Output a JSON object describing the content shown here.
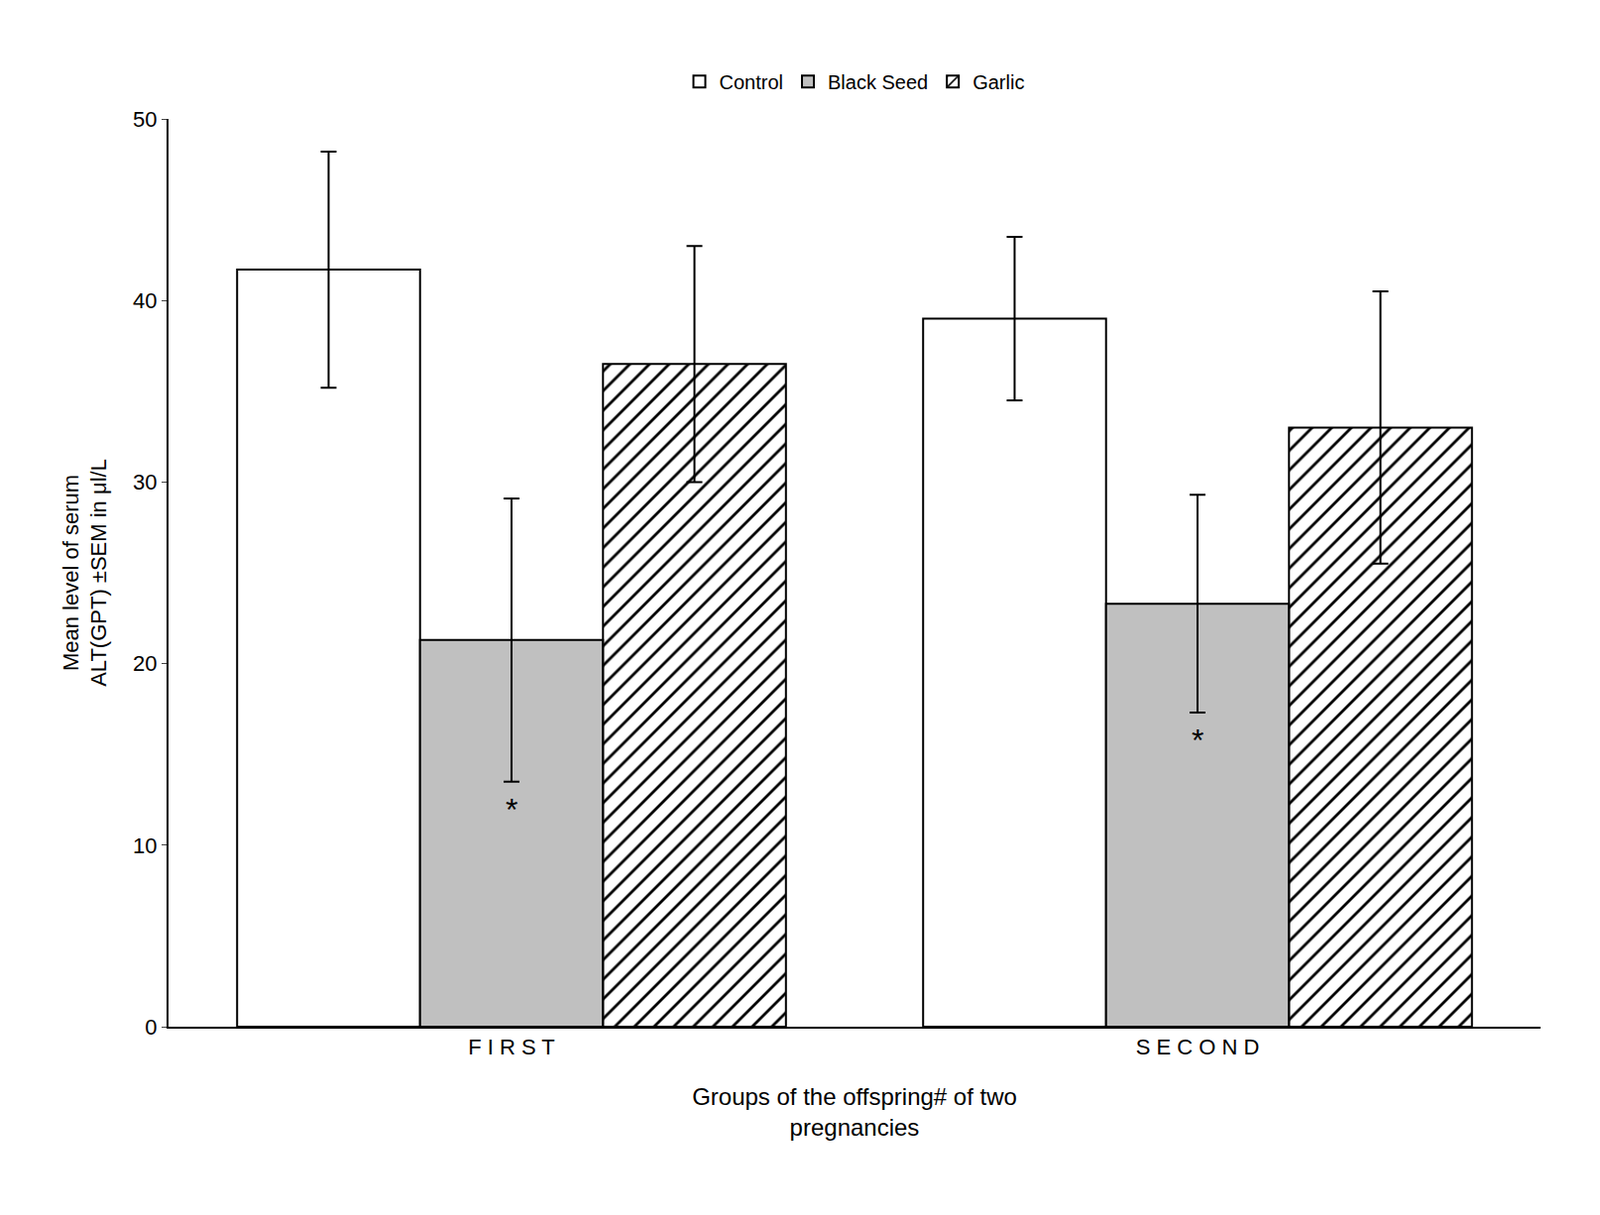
{
  "chart_data": {
    "type": "bar",
    "categories": [
      "F I R S T",
      "S E C O N D"
    ],
    "series": [
      {
        "name": "Control",
        "color": "#ffffff",
        "values": [
          41.7,
          39.0
        ],
        "errors": [
          6.5,
          4.5
        ]
      },
      {
        "name": "Black Seed",
        "color": "#c0c0c0",
        "values": [
          21.3,
          23.3
        ],
        "errors": [
          7.8,
          6.0
        ]
      },
      {
        "name": "Garlic",
        "color": "#ffffff",
        "marker": "hatch",
        "values": [
          36.5,
          33.0
        ],
        "errors": [
          6.5,
          7.5
        ]
      }
    ],
    "xlabel": "Groups of the offspring# of two\npregnancies",
    "ylabel": "Mean level of serum\nALT(GPT) ±SEM in μl/L",
    "ylim": [
      0,
      50
    ],
    "yticks": [
      0,
      10,
      20,
      30,
      40,
      50
    ],
    "grid": false,
    "legend": "top",
    "annotations": [
      {
        "text": "*",
        "series": "Black Seed",
        "category": "F I R S T"
      },
      {
        "text": "*",
        "series": "Black Seed",
        "category": "S E C O N D"
      }
    ]
  }
}
